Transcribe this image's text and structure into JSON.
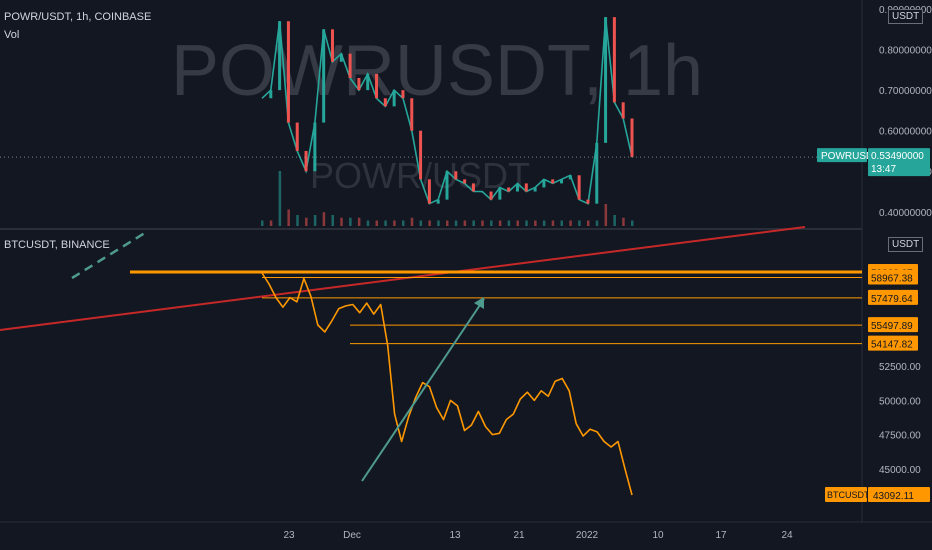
{
  "top_header": {
    "symbol_line": "POWR/USDT, 1h, COINBASE",
    "vol_label": "Vol"
  },
  "bottom_header": {
    "symbol_line": "BTCUSDT, BINANCE"
  },
  "watermark": {
    "big": "POWRUSDT, 1h",
    "small": "POWR/USDT"
  },
  "currency_badge": "USDT",
  "colors": {
    "bg": "#131722",
    "powr_up": "#26a69a",
    "powr_down": "#ef5350",
    "btc": "#ff9800",
    "trend": "#c62828",
    "arrow": "#4e9a8e"
  },
  "chart_data": [
    {
      "type": "line",
      "title": "POWR/USDT, 1h, COINBASE",
      "ylabel": "USDT",
      "y_ticks": [
        "0.40000000",
        "0.50000000",
        "0.60000000",
        "0.70000000",
        "0.80000000",
        "0.90000000"
      ],
      "ylim": [
        0.36,
        0.91
      ],
      "last_price": {
        "symbol": "POWRUSDT",
        "value": "0.53490000",
        "countdown": "13:47"
      },
      "x": [
        0,
        1,
        2,
        3,
        4,
        5,
        6,
        7,
        8,
        9,
        10,
        11,
        12,
        13,
        14,
        15,
        16,
        17,
        18,
        19,
        20,
        21,
        22,
        23,
        24,
        25,
        26,
        27,
        28,
        29,
        30,
        31,
        32,
        33,
        34,
        35,
        36,
        37,
        38,
        39,
        40,
        41,
        42
      ],
      "values": [
        0.68,
        0.7,
        0.87,
        0.62,
        0.55,
        0.5,
        0.62,
        0.85,
        0.77,
        0.79,
        0.73,
        0.7,
        0.74,
        0.68,
        0.66,
        0.7,
        0.68,
        0.6,
        0.48,
        0.42,
        0.43,
        0.5,
        0.48,
        0.47,
        0.45,
        0.45,
        0.43,
        0.46,
        0.45,
        0.47,
        0.45,
        0.46,
        0.48,
        0.47,
        0.48,
        0.49,
        0.43,
        0.42,
        0.57,
        0.88,
        0.67,
        0.63,
        0.5349
      ],
      "volume": [
        0.1,
        0.1,
        1.0,
        0.3,
        0.2,
        0.15,
        0.2,
        0.25,
        0.2,
        0.15,
        0.15,
        0.15,
        0.1,
        0.1,
        0.1,
        0.1,
        0.1,
        0.15,
        0.1,
        0.1,
        0.1,
        0.1,
        0.1,
        0.1,
        0.1,
        0.1,
        0.1,
        0.1,
        0.1,
        0.1,
        0.1,
        0.1,
        0.1,
        0.1,
        0.1,
        0.1,
        0.1,
        0.1,
        0.1,
        0.4,
        0.2,
        0.15,
        0.1
      ]
    },
    {
      "type": "line",
      "title": "BTCUSDT, BINANCE",
      "ylabel": "USDT",
      "y_ticks": [
        "45000.00",
        "47500.00",
        "50000.00",
        "52500.00"
      ],
      "ylim": [
        42000,
        62000
      ],
      "x_ticks": [
        "23",
        "Dec",
        "13",
        "21",
        "2022",
        "10",
        "17",
        "24"
      ],
      "last_price": {
        "symbol": "BTCUSDT",
        "value": "43092.11"
      },
      "levels": [
        "59368.87",
        "58967.38",
        "57479.64",
        "55497.89",
        "54147.82"
      ],
      "x": [
        0,
        1,
        2,
        3,
        4,
        5,
        6,
        7,
        8,
        9,
        10,
        11,
        12,
        13,
        14,
        15,
        16,
        17,
        18,
        19,
        20,
        21,
        22,
        23,
        24,
        25,
        26,
        27,
        28,
        29,
        30,
        31,
        32,
        33,
        34,
        35,
        36,
        37,
        38,
        39,
        40,
        41,
        42,
        43,
        44,
        45,
        46,
        47,
        48,
        49,
        50,
        51,
        52,
        53
      ],
      "values": [
        59300,
        58500,
        57500,
        56800,
        57500,
        57200,
        58900,
        57600,
        55500,
        55000,
        55800,
        56700,
        56900,
        57000,
        56400,
        57100,
        56300,
        57000,
        54000,
        49000,
        47000,
        48800,
        50200,
        51300,
        51000,
        49500,
        48600,
        50000,
        49600,
        47800,
        48200,
        49200,
        48100,
        47500,
        47600,
        48600,
        49000,
        50100,
        50600,
        50000,
        50700,
        50300,
        51400,
        51600,
        50700,
        48300,
        47400,
        47900,
        47700,
        47000,
        46600,
        47000,
        45000,
        43092
      ]
    }
  ]
}
